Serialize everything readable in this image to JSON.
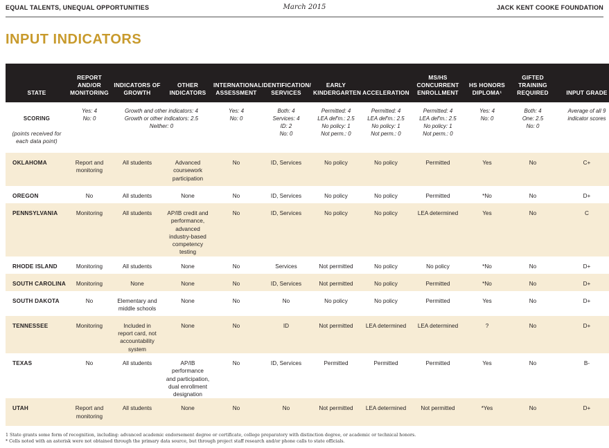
{
  "header": {
    "left": "EQUAL TALENTS, UNEQUAL OPPORTUNITIES",
    "center": "March 2015",
    "right": "JACK KENT COOKE FOUNDATION"
  },
  "section_title": "INPUT INDICATORS",
  "columns": [
    "STATE",
    "REPORT AND/OR MONITORING",
    "INDICATORS OF GROWTH",
    "OTHER INDICATORS",
    "INTERNATIONAL ASSESSMENT",
    "IDENTIFICATION/ SERVICES",
    "EARLY KINDERGARTEN",
    "ACCELERATION",
    "MS/HS CONCURRENT ENROLLMENT",
    "HS HONORS DIPLOMA¹",
    "GIFTED TRAINING REQUIRED",
    "INPUT GRADE"
  ],
  "scoring": {
    "label": "SCORING",
    "sublabel": "(points received for each data point)",
    "report": "Yes: 4\nNo: 0",
    "growth_other": "Growth and other indicators: 4\nGrowth or other indicators: 2.5\nNeither: 0",
    "international": "Yes: 4\nNo: 0",
    "identification": "Both: 4\nServices: 4\nID: 2\nNo: 0",
    "early_k": "Permitted: 4\nLEA def'm.: 2.5\nNo policy: 1\nNot perm.: 0",
    "acceleration": "Permitted: 4\nLEA def'm.: 2.5\nNo policy: 1\nNot perm.: 0",
    "concurrent": "Permitted: 4\nLEA def'm.: 2.5\nNo policy: 1\nNot perm.: 0",
    "honors": "Yes: 4\nNo: 0",
    "training": "Both: 4\nOne: 2.5\nNo: 0",
    "grade": "Average of all 9\nindicator scores"
  },
  "rows": [
    {
      "state": "OKLAHOMA",
      "report": "Report and\nmonitoring",
      "growth": "All students",
      "other": "Advanced\ncoursework\nparticipation",
      "international": "No",
      "identification": "ID, Services",
      "early_k": "No policy",
      "acceleration": "No policy",
      "concurrent": "Permitted",
      "honors": "Yes",
      "training": "No",
      "grade": "C+"
    },
    {
      "state": "OREGON",
      "report": "No",
      "growth": "All students",
      "other": "None",
      "international": "No",
      "identification": "ID, Services",
      "early_k": "No policy",
      "acceleration": "No policy",
      "concurrent": "Permitted",
      "honors": "*No",
      "training": "No",
      "grade": "D+"
    },
    {
      "state": "PENNSYLVANIA",
      "report": "Monitoring",
      "growth": "All students",
      "other": "AP/IB credit and\nperformance,\nadvanced\nindustry-based\ncompetency testing",
      "international": "No",
      "identification": "ID, Services",
      "early_k": "No policy",
      "acceleration": "No policy",
      "concurrent": "LEA determined",
      "honors": "Yes",
      "training": "No",
      "grade": "C"
    },
    {
      "state": "RHODE ISLAND",
      "report": "Monitoring",
      "growth": "All students",
      "other": "None",
      "international": "No",
      "identification": "Services",
      "early_k": "Not permitted",
      "acceleration": "No policy",
      "concurrent": "No policy",
      "honors": "*No",
      "training": "No",
      "grade": "D+"
    },
    {
      "state": "SOUTH CAROLINA",
      "report": "Monitoring",
      "growth": "None",
      "other": "None",
      "international": "No",
      "identification": "ID, Services",
      "early_k": "Not permitted",
      "acceleration": "No policy",
      "concurrent": "Permitted",
      "honors": "*No",
      "training": "No",
      "grade": "D+"
    },
    {
      "state": "SOUTH DAKOTA",
      "report": "No",
      "growth": "Elementary and\nmiddle schools",
      "other": "None",
      "international": "No",
      "identification": "No",
      "early_k": "No policy",
      "acceleration": "No policy",
      "concurrent": "Permitted",
      "honors": "Yes",
      "training": "No",
      "grade": "D+"
    },
    {
      "state": "TENNESSEE",
      "report": "Monitoring",
      "growth": "Included in\nreport card, not\naccountability system",
      "other": "None",
      "international": "No",
      "identification": "ID",
      "early_k": "Not permitted",
      "acceleration": "LEA determined",
      "concurrent": "LEA determined",
      "honors": "?",
      "training": "No",
      "grade": "D+"
    },
    {
      "state": "TEXAS",
      "report": "No",
      "growth": "All students",
      "other": "AP/IB performance\nand participation,\ndual enrollment\ndesignation",
      "international": "No",
      "identification": "ID, Services",
      "early_k": "Permitted",
      "acceleration": "Permitted",
      "concurrent": "Permitted",
      "honors": "Yes",
      "training": "No",
      "grade": "B-"
    },
    {
      "state": "UTAH",
      "report": "Report and\nmonitoring",
      "growth": "All students",
      "other": "None",
      "international": "No",
      "identification": "No",
      "early_k": "Not permitted",
      "acceleration": "LEA determined",
      "concurrent": "Not permitted",
      "honors": "*Yes",
      "training": "No",
      "grade": "D+"
    }
  ],
  "footnotes": [
    "1  State grants some form of recognition, including: advanced academic endorsement degree or certificate, college preparatory with distinction degree, or academic or technical honors.",
    "*  Cells noted with an asterisk were not obtained through the primary data source, but through project staff research and/or phone calls to state officials."
  ]
}
